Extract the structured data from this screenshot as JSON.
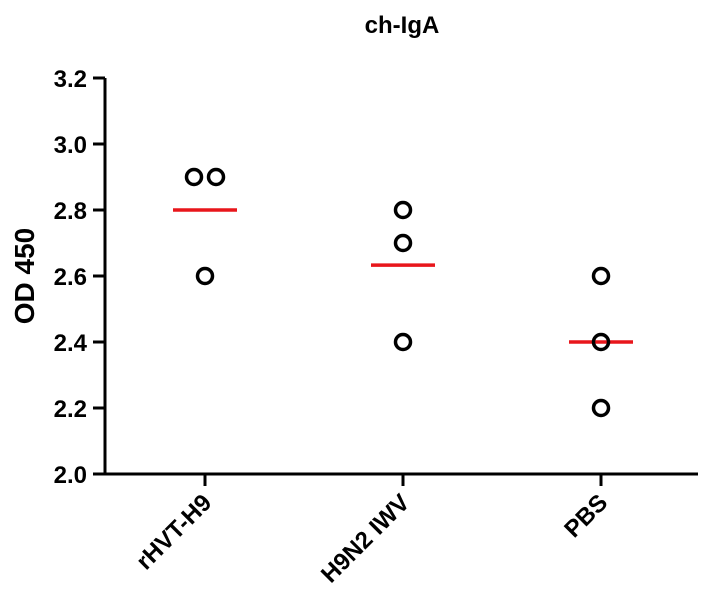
{
  "chart_data": {
    "type": "scatter",
    "title": "ch-IgA",
    "xlabel": "",
    "ylabel": "OD 450",
    "ylim": [
      2.0,
      3.2
    ],
    "yticks": [
      "2.0",
      "2.2",
      "2.4",
      "2.6",
      "2.8",
      "3.0",
      "3.2"
    ],
    "grid": false,
    "categories": [
      "rHVT-H9",
      "H9N2 IWV",
      "PBS"
    ],
    "points": [
      {
        "category": "rHVT-H9",
        "values": [
          2.9,
          2.9,
          2.6
        ]
      },
      {
        "category": "H9N2 IWV",
        "values": [
          2.8,
          2.7,
          2.4
        ]
      },
      {
        "category": "PBS",
        "values": [
          2.6,
          2.4,
          2.2
        ]
      }
    ],
    "means": [
      2.8,
      2.633,
      2.4
    ],
    "colors": {
      "points": "#000000",
      "mean_line": "#e8161b",
      "axis": "#000000"
    }
  }
}
